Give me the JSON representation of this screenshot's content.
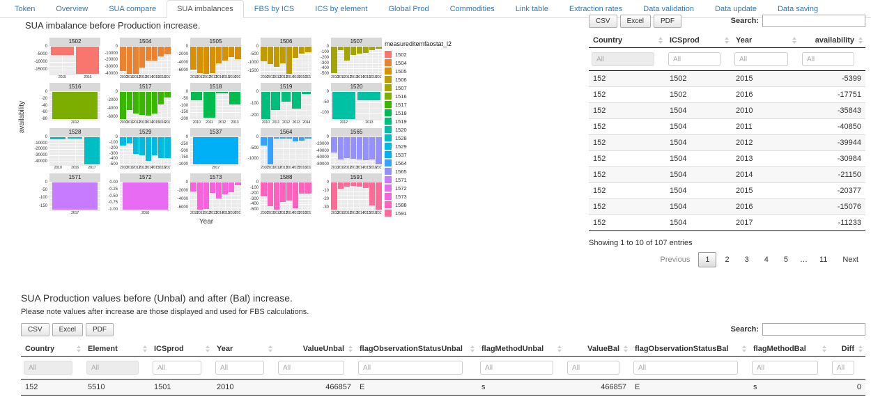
{
  "tabs": {
    "items": [
      "Token",
      "Overview",
      "SUA compare",
      "SUA imbalances",
      "FBS by ICS",
      "ICS by element",
      "Global Prod",
      "Commodities",
      "Link table",
      "Extraction rates",
      "Data validation",
      "Data update",
      "Data saving"
    ],
    "active_index": 3
  },
  "chart_data": {
    "type": "bar",
    "title": "SUA imbalance before Production increase.",
    "xlabel": "Year",
    "ylabel": "availability",
    "legend_title": "measureditemfaostat_l2",
    "legend_position": "right",
    "faceted_by": "measureditemfaostat_l2",
    "facets": [
      {
        "code": "1502",
        "color": "#F8766D",
        "years": [
          "2015",
          "2016"
        ],
        "values": [
          -5399,
          -17751
        ],
        "yticks": [
          0,
          -5000,
          -10000,
          -15000
        ]
      },
      {
        "code": "1504",
        "color": "#EA8331",
        "years": [
          "2010",
          "2011",
          "2012",
          "2013",
          "2014",
          "2015",
          "2016",
          "2017"
        ],
        "values": [
          -35843,
          -40850,
          -39944,
          -30984,
          -21150,
          -20377,
          -15076,
          -11233
        ],
        "yticks": [
          0,
          -10000,
          -20000,
          -30000,
          -40000
        ]
      },
      {
        "code": "1505",
        "color": "#D89000",
        "years": [
          "2010",
          "2011",
          "2012",
          "2013",
          "2014",
          "2015",
          "2016",
          "2017"
        ],
        "values": [
          -5800,
          -6600,
          -6900,
          -6700,
          -4300,
          -3500,
          -2700,
          -3100
        ],
        "yticks": [
          0,
          -2000,
          -4000,
          -6000
        ]
      },
      {
        "code": "1506",
        "color": "#C09B00",
        "years": [
          "2010",
          "2011",
          "2012",
          "2013",
          "2014",
          "2015",
          "2016",
          "2017"
        ],
        "values": [
          -900,
          -1100,
          -1250,
          -1050,
          -1700,
          -700,
          -450,
          -350
        ],
        "yticks": [
          0,
          -500,
          -1000,
          -1500
        ]
      },
      {
        "code": "1507",
        "color": "#A3A500",
        "years": [
          "2010",
          "2011",
          "2012",
          "2013",
          "2014",
          "2015",
          "2016",
          "2017"
        ],
        "values": [
          -480,
          -60,
          -250,
          -160,
          -130,
          -110,
          -60,
          -40
        ],
        "yticks": [
          0,
          -100,
          -200,
          -300,
          -400,
          -500
        ]
      },
      {
        "code": "1516",
        "color": "#7CAE00",
        "years": [
          "2012"
        ],
        "values": [
          -80
        ],
        "yticks": [
          0,
          -20,
          -40,
          -60,
          -80
        ]
      },
      {
        "code": "1517",
        "color": "#39B600",
        "years": [
          "2010",
          "2011",
          "2012",
          "2013",
          "2014",
          "2015",
          "2016",
          "2017"
        ],
        "values": [
          -6500,
          -4300,
          -5200,
          -5400,
          -5600,
          -5200,
          -3000,
          -1300
        ],
        "yticks": [
          0,
          -2000,
          -4000,
          -6000
        ]
      },
      {
        "code": "1518",
        "color": "#00BB4E",
        "years": [
          "2010",
          "2011",
          "2012",
          "2013"
        ],
        "values": [
          -60,
          -190,
          -10,
          -90
        ],
        "yticks": [
          0,
          -50,
          -100,
          -150,
          -200
        ]
      },
      {
        "code": "1519",
        "color": "#00BF7D",
        "years": [
          "2010",
          "2011",
          "2012",
          "2013",
          "2014"
        ],
        "values": [
          -230,
          -150,
          -80,
          -140,
          -20
        ],
        "yticks": [
          0,
          -100,
          -200
        ]
      },
      {
        "code": "1520",
        "color": "#00C1A3",
        "years": [
          "2012",
          "2013"
        ],
        "values": [
          -130,
          -40
        ],
        "yticks": [
          0,
          -50,
          -100
        ]
      },
      {
        "code": "1528",
        "color": "#00BFC4",
        "years": [
          "2010",
          "2016",
          "2017"
        ],
        "values": [
          -3500,
          -2500,
          -45000
        ],
        "yticks": [
          0,
          -10000,
          -20000,
          -30000,
          -40000
        ]
      },
      {
        "code": "1529",
        "color": "#00BAE0",
        "years": [
          "2010",
          "2011",
          "2012",
          "2013",
          "2014",
          "2015",
          "2016",
          "2017"
        ],
        "values": [
          -150,
          -120,
          -300,
          -330,
          -430,
          -330,
          -380,
          -380
        ],
        "yticks": [
          0,
          -100,
          -200,
          -300,
          -400,
          -500
        ]
      },
      {
        "code": "1537",
        "color": "#00B0F6",
        "years": [
          "2017"
        ],
        "values": [
          -1000
        ],
        "yticks": [
          0,
          -250,
          -500,
          -750,
          -1000
        ]
      },
      {
        "code": "1564",
        "color": "#35A2FF",
        "years": [
          "2010",
          "2011",
          "2012",
          "2013",
          "2014",
          "2015",
          "2016",
          "2017"
        ],
        "values": [
          -400,
          -1250,
          -60,
          -60,
          -60,
          -200,
          -170,
          -60
        ],
        "yticks": [
          0,
          -500,
          -1000
        ]
      },
      {
        "code": "1565",
        "color": "#9590FF",
        "years": [
          "2010",
          "2011",
          "2012",
          "2013",
          "2014",
          "2015",
          "2016",
          "2017"
        ],
        "values": [
          -45000,
          -65000,
          -61000,
          -63000,
          -65000,
          -68000,
          -65000,
          -80000
        ],
        "yticks": [
          0,
          -20000,
          -40000,
          -60000,
          -80000
        ]
      },
      {
        "code": "1571",
        "color": "#C77CFF",
        "years": [
          "2017"
        ],
        "values": [
          -175
        ],
        "yticks": [
          0,
          -50,
          -100,
          -150
        ]
      },
      {
        "code": "1572",
        "color": "#E76BF3",
        "years": [
          "2010"
        ],
        "values": [
          -1
        ],
        "yticks": [
          0,
          -0.25,
          -0.5,
          -0.75,
          -1
        ],
        "ytick_labels": [
          "0.00",
          "-0.25",
          "-0.50",
          "-0.75",
          "-1.00"
        ]
      },
      {
        "code": "1573",
        "color": "#FA62DB",
        "years": [
          "2010",
          "2011",
          "2012",
          "2013",
          "2014",
          "2015",
          "2016",
          "2017"
        ],
        "values": [
          -2200,
          -6600,
          -6300,
          -2500,
          -3900,
          -2900,
          -2300,
          -700
        ],
        "yticks": [
          0,
          -2000,
          -4000,
          -6000
        ]
      },
      {
        "code": "1588",
        "color": "#FF62BC",
        "years": [
          "2010",
          "2011",
          "2012",
          "2013",
          "2014",
          "2015",
          "2016",
          "2017"
        ],
        "values": [
          -250,
          -430,
          -490,
          -350,
          -330,
          -470,
          -200,
          -200
        ],
        "yticks": [
          0,
          -100,
          -200,
          -300,
          -400,
          -500
        ]
      },
      {
        "code": "1591",
        "color": "#FF6A98",
        "years": [
          "2010",
          "2011",
          "2012",
          "2013",
          "2014",
          "2015",
          "2016",
          "2017"
        ],
        "values": [
          -33,
          -8,
          -5,
          -4,
          -5,
          -7,
          -28,
          -33
        ],
        "yticks": [
          0,
          -10,
          -20,
          -30
        ]
      }
    ]
  },
  "imbalance_table": {
    "buttons": [
      "CSV",
      "Excel",
      "PDF"
    ],
    "search_label": "Search:",
    "search_value": "",
    "columns": [
      "Country",
      "ICSprod",
      "Year",
      "availability"
    ],
    "filter_placeholder": "All",
    "rows": [
      [
        "152",
        "1502",
        "2015",
        "-5399"
      ],
      [
        "152",
        "1502",
        "2016",
        "-17751"
      ],
      [
        "152",
        "1504",
        "2010",
        "-35843"
      ],
      [
        "152",
        "1504",
        "2011",
        "-40850"
      ],
      [
        "152",
        "1504",
        "2012",
        "-39944"
      ],
      [
        "152",
        "1504",
        "2013",
        "-30984"
      ],
      [
        "152",
        "1504",
        "2014",
        "-21150"
      ],
      [
        "152",
        "1504",
        "2015",
        "-20377"
      ],
      [
        "152",
        "1504",
        "2016",
        "-15076"
      ],
      [
        "152",
        "1504",
        "2017",
        "-11233"
      ]
    ],
    "info": "Showing 1 to 10 of 107 entries",
    "pagination": {
      "previous": "Previous",
      "pages": [
        "1",
        "2",
        "3",
        "4",
        "5",
        "…",
        "11"
      ],
      "active_page": "1",
      "next": "Next"
    }
  },
  "production_table": {
    "title": "SUA Production values before (Unbal) and after (Bal) increase.",
    "note": "Please note values after increase are those displayed and used for FBS calculations.",
    "buttons": [
      "CSV",
      "Excel",
      "PDF"
    ],
    "search_label": "Search:",
    "search_value": "",
    "columns": [
      "Country",
      "Element",
      "ICSprod",
      "Year",
      "ValueUnbal",
      "flagObservationStatusUnbal",
      "flagMethodUnbal",
      "ValueBal",
      "flagObservationStatusBal",
      "flagMethodBal",
      "Diff"
    ],
    "filter_placeholder": "All",
    "rows": [
      [
        "152",
        "5510",
        "1501",
        "2010",
        "466857",
        "E",
        "s",
        "466857",
        "E",
        "s",
        "0"
      ]
    ]
  }
}
